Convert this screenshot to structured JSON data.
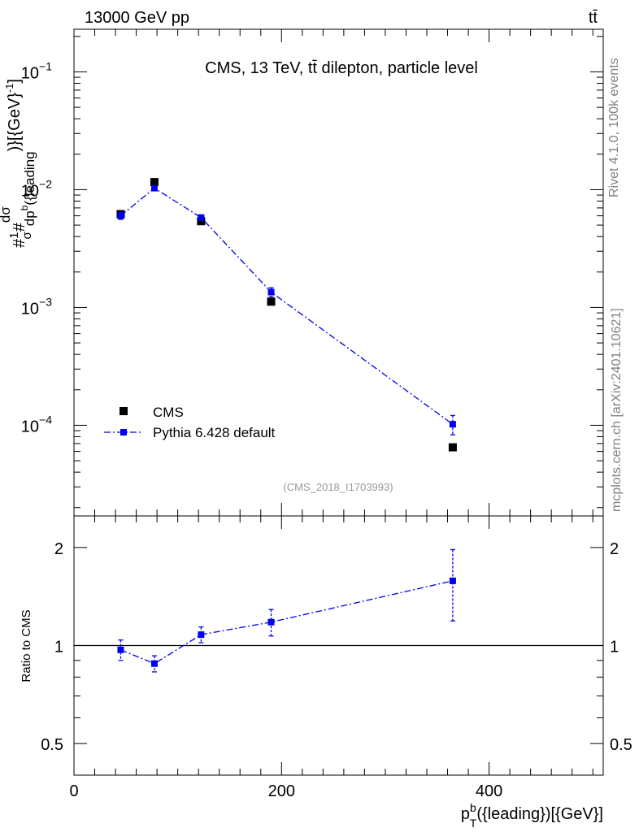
{
  "header": {
    "left": "13000 GeV pp",
    "right": "tt̄"
  },
  "side_labels": {
    "rivet": "Rivet 4.1.0,  100k events",
    "source": "mcplots.cern.ch [arXiv:2401.10621]"
  },
  "chart_data": [
    {
      "type": "scatter",
      "title": "CMS, 13 TeV, tt̄ dilepton, particle level",
      "watermark": "(CMS_2018_I1703993)",
      "ylabel": "#frac{1}{σ}#frac{dσ}{dp_{T}^{b}({leading})}[{GeV}^{-1}]",
      "xlabel": "p_T^b({leading})[{GeV}]",
      "xlabel_parts": {
        "p": "p",
        "sup": "b",
        "sub": "T",
        "rest": "({leading})[{GeV}]"
      },
      "x_range": [
        0,
        510
      ],
      "y_scale": "log",
      "y_range": [
        1.7e-05,
        0.23
      ],
      "x_ticks": [
        0,
        200,
        400
      ],
      "y_ticks": [
        {
          "value": 0.1,
          "mantissa": "10",
          "exp": "−1"
        },
        {
          "value": 0.01,
          "mantissa": "10",
          "exp": "−2"
        },
        {
          "value": 0.001,
          "mantissa": "10",
          "exp": "−3"
        },
        {
          "value": 0.0001,
          "mantissa": "10",
          "exp": "−4"
        }
      ],
      "legend": [
        {
          "label": "CMS",
          "color": "#000000",
          "marker": "square"
        },
        {
          "label": "Pythia 6.428 default",
          "color": "#0000ee",
          "marker": "square-line"
        }
      ],
      "series": [
        {
          "name": "CMS",
          "color": "#000000",
          "x": [
            45,
            77.5,
            122.5,
            190,
            365
          ],
          "y": [
            0.0062,
            0.0116,
            0.0054,
            0.00112,
            6.5e-05
          ]
        },
        {
          "name": "Pythia 6.428 default",
          "color": "#0000ee",
          "x": [
            45,
            77.5,
            122.5,
            190,
            365
          ],
          "y": [
            0.006,
            0.0103,
            0.0058,
            0.00135,
            0.000102
          ],
          "err_lo": [
            0.0004,
            0.0005,
            0.0003,
            0.00012,
            1.9e-05
          ],
          "err_hi": [
            0.0004,
            0.0005,
            0.0003,
            0.00012,
            1.9e-05
          ]
        }
      ]
    },
    {
      "type": "scatter",
      "ylabel": "Ratio to CMS",
      "x_range": [
        0,
        510
      ],
      "y_scale": "log",
      "y_range": [
        0.4,
        2.5
      ],
      "y_ticks": [
        {
          "value": 0.5,
          "label": "0.5"
        },
        {
          "value": 1,
          "label": "1"
        },
        {
          "value": 2,
          "label": "2"
        }
      ],
      "reference_line": 1,
      "series": [
        {
          "name": "Pythia 6.428 default / CMS",
          "color": "#0000ee",
          "x": [
            45,
            77.5,
            122.5,
            190,
            365
          ],
          "y": [
            0.97,
            0.88,
            1.08,
            1.18,
            1.58
          ],
          "err_lo": [
            0.07,
            0.05,
            0.06,
            0.11,
            0.39
          ],
          "err_hi": [
            0.07,
            0.05,
            0.06,
            0.11,
            0.39
          ]
        }
      ]
    }
  ]
}
